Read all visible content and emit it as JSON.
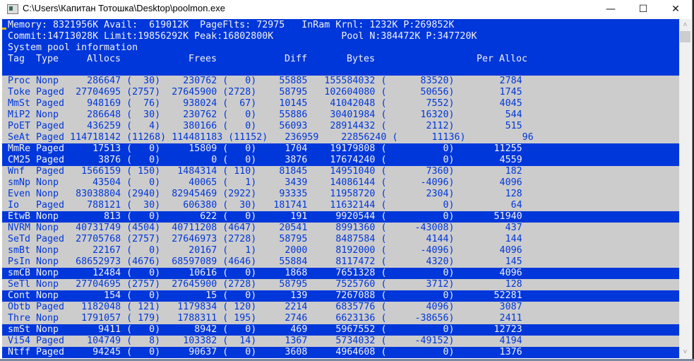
{
  "window": {
    "title": "C:\\Users\\Капитан Тотошка\\Desktop\\poolmon.exe",
    "minimize_icon": "—",
    "maximize_icon": "☐",
    "close_icon": "✕"
  },
  "summary": {
    "line1": "Memory: 8321956K Avail:  619012K  PageFlts: 72975   InRam Krnl: 1232K P:269852K",
    "line2": "Commit:14713028K Limit:19856292K Peak:16802800K            Pool N:384472K P:347720K",
    "line3": "System pool information"
  },
  "columns": [
    "Tag",
    "Type",
    "Allocs",
    "Frees",
    "Diff",
    "Bytes",
    "Per Alloc"
  ],
  "colors": {
    "console_blue": "#0037da",
    "console_gray": "#cccccc",
    "text_white": "#f2f2f2"
  },
  "rows": [
    {
      "tag": "Proc",
      "type": "Nonp",
      "allocs": 286647,
      "allocs_delta": 30,
      "frees": 230762,
      "frees_delta": 0,
      "diff": 55885,
      "bytes": 155584032,
      "bytes_delta": 83520,
      "per_alloc": 2784,
      "highlighted": false
    },
    {
      "tag": "Toke",
      "type": "Paged",
      "allocs": 27704695,
      "allocs_delta": 2757,
      "frees": 27645900,
      "frees_delta": 2728,
      "diff": 58795,
      "bytes": 102604080,
      "bytes_delta": 50656,
      "per_alloc": 1745,
      "highlighted": false
    },
    {
      "tag": "MmSt",
      "type": "Paged",
      "allocs": 948169,
      "allocs_delta": 76,
      "frees": 938024,
      "frees_delta": 67,
      "diff": 10145,
      "bytes": 41042048,
      "bytes_delta": 7552,
      "per_alloc": 4045,
      "highlighted": false
    },
    {
      "tag": "MiP2",
      "type": "Nonp",
      "allocs": 286648,
      "allocs_delta": 30,
      "frees": 230762,
      "frees_delta": 0,
      "diff": 55886,
      "bytes": 30401984,
      "bytes_delta": 16320,
      "per_alloc": 544,
      "highlighted": false
    },
    {
      "tag": "PoET",
      "type": "Paged",
      "allocs": 436259,
      "allocs_delta": 4,
      "frees": 380166,
      "frees_delta": 0,
      "diff": 56093,
      "bytes": 28914432,
      "bytes_delta": 2112,
      "per_alloc": 515,
      "highlighted": false
    },
    {
      "tag": "SeAt",
      "type": "Paged",
      "allocs": 114718142,
      "allocs_delta": 11268,
      "frees": 114481183,
      "frees_delta": 11152,
      "diff": 236959,
      "bytes": 22856240,
      "bytes_delta": 11136,
      "per_alloc": 96,
      "highlighted": false
    },
    {
      "tag": "MmRe",
      "type": "Paged",
      "allocs": 17513,
      "allocs_delta": 0,
      "frees": 15809,
      "frees_delta": 0,
      "diff": 1704,
      "bytes": 19179808,
      "bytes_delta": 0,
      "per_alloc": 11255,
      "highlighted": true
    },
    {
      "tag": "CM25",
      "type": "Paged",
      "allocs": 3876,
      "allocs_delta": 0,
      "frees": 0,
      "frees_delta": 0,
      "diff": 3876,
      "bytes": 17674240,
      "bytes_delta": 0,
      "per_alloc": 4559,
      "highlighted": true
    },
    {
      "tag": "Wnf",
      "type": "Paged",
      "allocs": 1566159,
      "allocs_delta": 150,
      "frees": 1484314,
      "frees_delta": 110,
      "diff": 81845,
      "bytes": 14951040,
      "bytes_delta": 7360,
      "per_alloc": 182,
      "highlighted": false
    },
    {
      "tag": "smNp",
      "type": "Nonp",
      "allocs": 43504,
      "allocs_delta": 0,
      "frees": 40065,
      "frees_delta": 1,
      "diff": 3439,
      "bytes": 14086144,
      "bytes_delta": -4096,
      "per_alloc": 4096,
      "highlighted": false
    },
    {
      "tag": "Even",
      "type": "Nonp",
      "allocs": 83038804,
      "allocs_delta": 2940,
      "frees": 82945469,
      "frees_delta": 2922,
      "diff": 93335,
      "bytes": 11958720,
      "bytes_delta": 2304,
      "per_alloc": 128,
      "highlighted": false
    },
    {
      "tag": "Io",
      "type": "Paged",
      "allocs": 788121,
      "allocs_delta": 30,
      "frees": 606380,
      "frees_delta": 30,
      "diff": 181741,
      "bytes": 11632144,
      "bytes_delta": 0,
      "per_alloc": 64,
      "highlighted": false
    },
    {
      "tag": "EtwB",
      "type": "Nonp",
      "allocs": 813,
      "allocs_delta": 0,
      "frees": 622,
      "frees_delta": 0,
      "diff": 191,
      "bytes": 9920544,
      "bytes_delta": 0,
      "per_alloc": 51940,
      "highlighted": true
    },
    {
      "tag": "NVRM",
      "type": "Nonp",
      "allocs": 40731749,
      "allocs_delta": 4504,
      "frees": 40711208,
      "frees_delta": 4647,
      "diff": 20541,
      "bytes": 8991360,
      "bytes_delta": -43008,
      "per_alloc": 437,
      "highlighted": false
    },
    {
      "tag": "SeTd",
      "type": "Paged",
      "allocs": 27705768,
      "allocs_delta": 2757,
      "frees": 27646973,
      "frees_delta": 2728,
      "diff": 58795,
      "bytes": 8487584,
      "bytes_delta": 4144,
      "per_alloc": 144,
      "highlighted": false
    },
    {
      "tag": "smBt",
      "type": "Nonp",
      "allocs": 22167,
      "allocs_delta": 0,
      "frees": 20167,
      "frees_delta": 1,
      "diff": 2000,
      "bytes": 8192000,
      "bytes_delta": -4096,
      "per_alloc": 4096,
      "highlighted": false
    },
    {
      "tag": "PsIn",
      "type": "Nonp",
      "allocs": 68652973,
      "allocs_delta": 4676,
      "frees": 68597089,
      "frees_delta": 4646,
      "diff": 55884,
      "bytes": 8117472,
      "bytes_delta": 4320,
      "per_alloc": 145,
      "highlighted": false
    },
    {
      "tag": "smCB",
      "type": "Nonp",
      "allocs": 12484,
      "allocs_delta": 0,
      "frees": 10616,
      "frees_delta": 0,
      "diff": 1868,
      "bytes": 7651328,
      "bytes_delta": 0,
      "per_alloc": 4096,
      "highlighted": true
    },
    {
      "tag": "SeTl",
      "type": "Nonp",
      "allocs": 27704695,
      "allocs_delta": 2757,
      "frees": 27645900,
      "frees_delta": 2728,
      "diff": 58795,
      "bytes": 7525760,
      "bytes_delta": 3712,
      "per_alloc": 128,
      "highlighted": false
    },
    {
      "tag": "Cont",
      "type": "Nonp",
      "allocs": 154,
      "allocs_delta": 0,
      "frees": 15,
      "frees_delta": 0,
      "diff": 139,
      "bytes": 7267088,
      "bytes_delta": 0,
      "per_alloc": 52281,
      "highlighted": true
    },
    {
      "tag": "Obtb",
      "type": "Paged",
      "allocs": 1182048,
      "allocs_delta": 121,
      "frees": 1179834,
      "frees_delta": 120,
      "diff": 2214,
      "bytes": 6835776,
      "bytes_delta": 4096,
      "per_alloc": 3087,
      "highlighted": false
    },
    {
      "tag": "Thre",
      "type": "Nonp",
      "allocs": 1791057,
      "allocs_delta": 179,
      "frees": 1788311,
      "frees_delta": 195,
      "diff": 2746,
      "bytes": 6623136,
      "bytes_delta": -38656,
      "per_alloc": 2411,
      "highlighted": false
    },
    {
      "tag": "smSt",
      "type": "Nonp",
      "allocs": 9411,
      "allocs_delta": 0,
      "frees": 8942,
      "frees_delta": 0,
      "diff": 469,
      "bytes": 5967552,
      "bytes_delta": 0,
      "per_alloc": 12723,
      "highlighted": true
    },
    {
      "tag": "Vi54",
      "type": "Paged",
      "allocs": 104749,
      "allocs_delta": 8,
      "frees": 103382,
      "frees_delta": 14,
      "diff": 1367,
      "bytes": 5734032,
      "bytes_delta": -49152,
      "per_alloc": 4194,
      "highlighted": false
    },
    {
      "tag": "Ntff",
      "type": "Paged",
      "allocs": 94245,
      "allocs_delta": 0,
      "frees": 90637,
      "frees_delta": 0,
      "diff": 3608,
      "bytes": 4964608,
      "bytes_delta": 0,
      "per_alloc": 1376,
      "highlighted": true
    }
  ],
  "scrollbar": {
    "up_icon": "˄",
    "down_icon": "˅"
  }
}
